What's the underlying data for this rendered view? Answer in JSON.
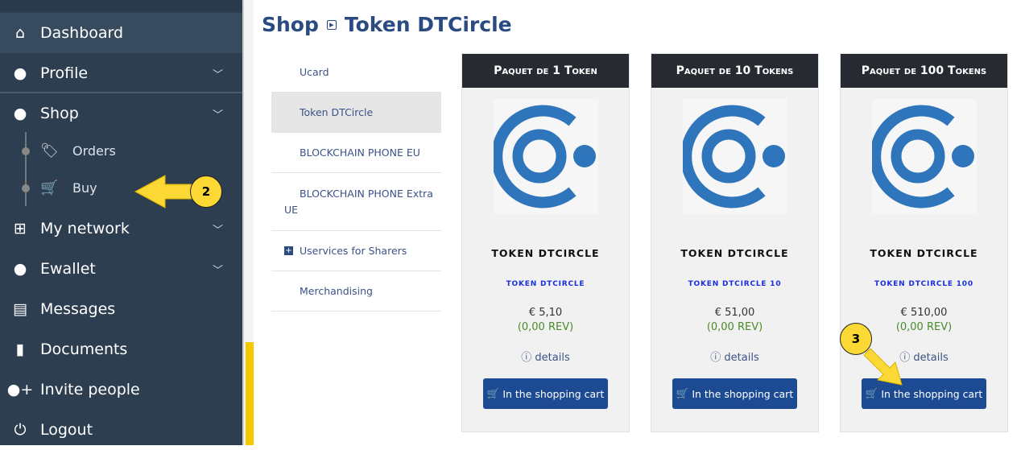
{
  "sidebar": {
    "items": [
      {
        "label": "Dashboard",
        "icon": "home-icon"
      },
      {
        "label": "Profile",
        "icon": "user-icon"
      },
      {
        "label": "Shop",
        "icon": "user-icon"
      },
      {
        "label": "My network",
        "icon": "sitemap-icon"
      },
      {
        "label": "Ewallet",
        "icon": "user-icon"
      },
      {
        "label": "Messages",
        "icon": "newspaper-icon"
      },
      {
        "label": "Documents",
        "icon": "file-icon"
      },
      {
        "label": "Invite people",
        "icon": "user-plus-icon"
      },
      {
        "label": "Logout",
        "icon": "power-icon"
      }
    ],
    "shop_sub": [
      {
        "label": "Orders",
        "icon": "tags-icon"
      },
      {
        "label": "Buy",
        "icon": "cart-icon"
      }
    ]
  },
  "header": {
    "crumb": "Shop",
    "title": "Token DTCircle"
  },
  "categories": [
    "Ucard",
    "Token DTCircle",
    "BLOCKCHAIN PHONE EU",
    "BLOCKCHAIN PHONE Extra UE",
    "Uservices for Sharers",
    "Merchandising"
  ],
  "products": [
    {
      "header": "Paquet de 1 Token",
      "name": "TOKEN DTCIRCLE",
      "code": "TOKEN DTCIRCLE",
      "price": "€ 5,10",
      "rev": "(0,00 REV)",
      "details": "details",
      "button": "In the shopping cart"
    },
    {
      "header": "Paquet de 10 Tokens",
      "name": "TOKEN DTCIRCLE",
      "code": "TOKEN DTCIRCLE 10",
      "price": "€ 51,00",
      "rev": "(0,00 REV)",
      "details": "details",
      "button": "In the shopping cart"
    },
    {
      "header": "Paquet de 100 Tokens",
      "name": "TOKEN DTCIRCLE",
      "code": "TOKEN DTCIRCLE 100",
      "price": "€ 510,00",
      "rev": "(0,00 REV)",
      "details": "details",
      "button": "In the shopping cart"
    }
  ],
  "annotations": [
    "2",
    "3"
  ],
  "colors": {
    "sidebar": "#2e3e51",
    "accent": "#1c4a93",
    "logo": "#2f75bb",
    "annotation": "#fcd835"
  }
}
